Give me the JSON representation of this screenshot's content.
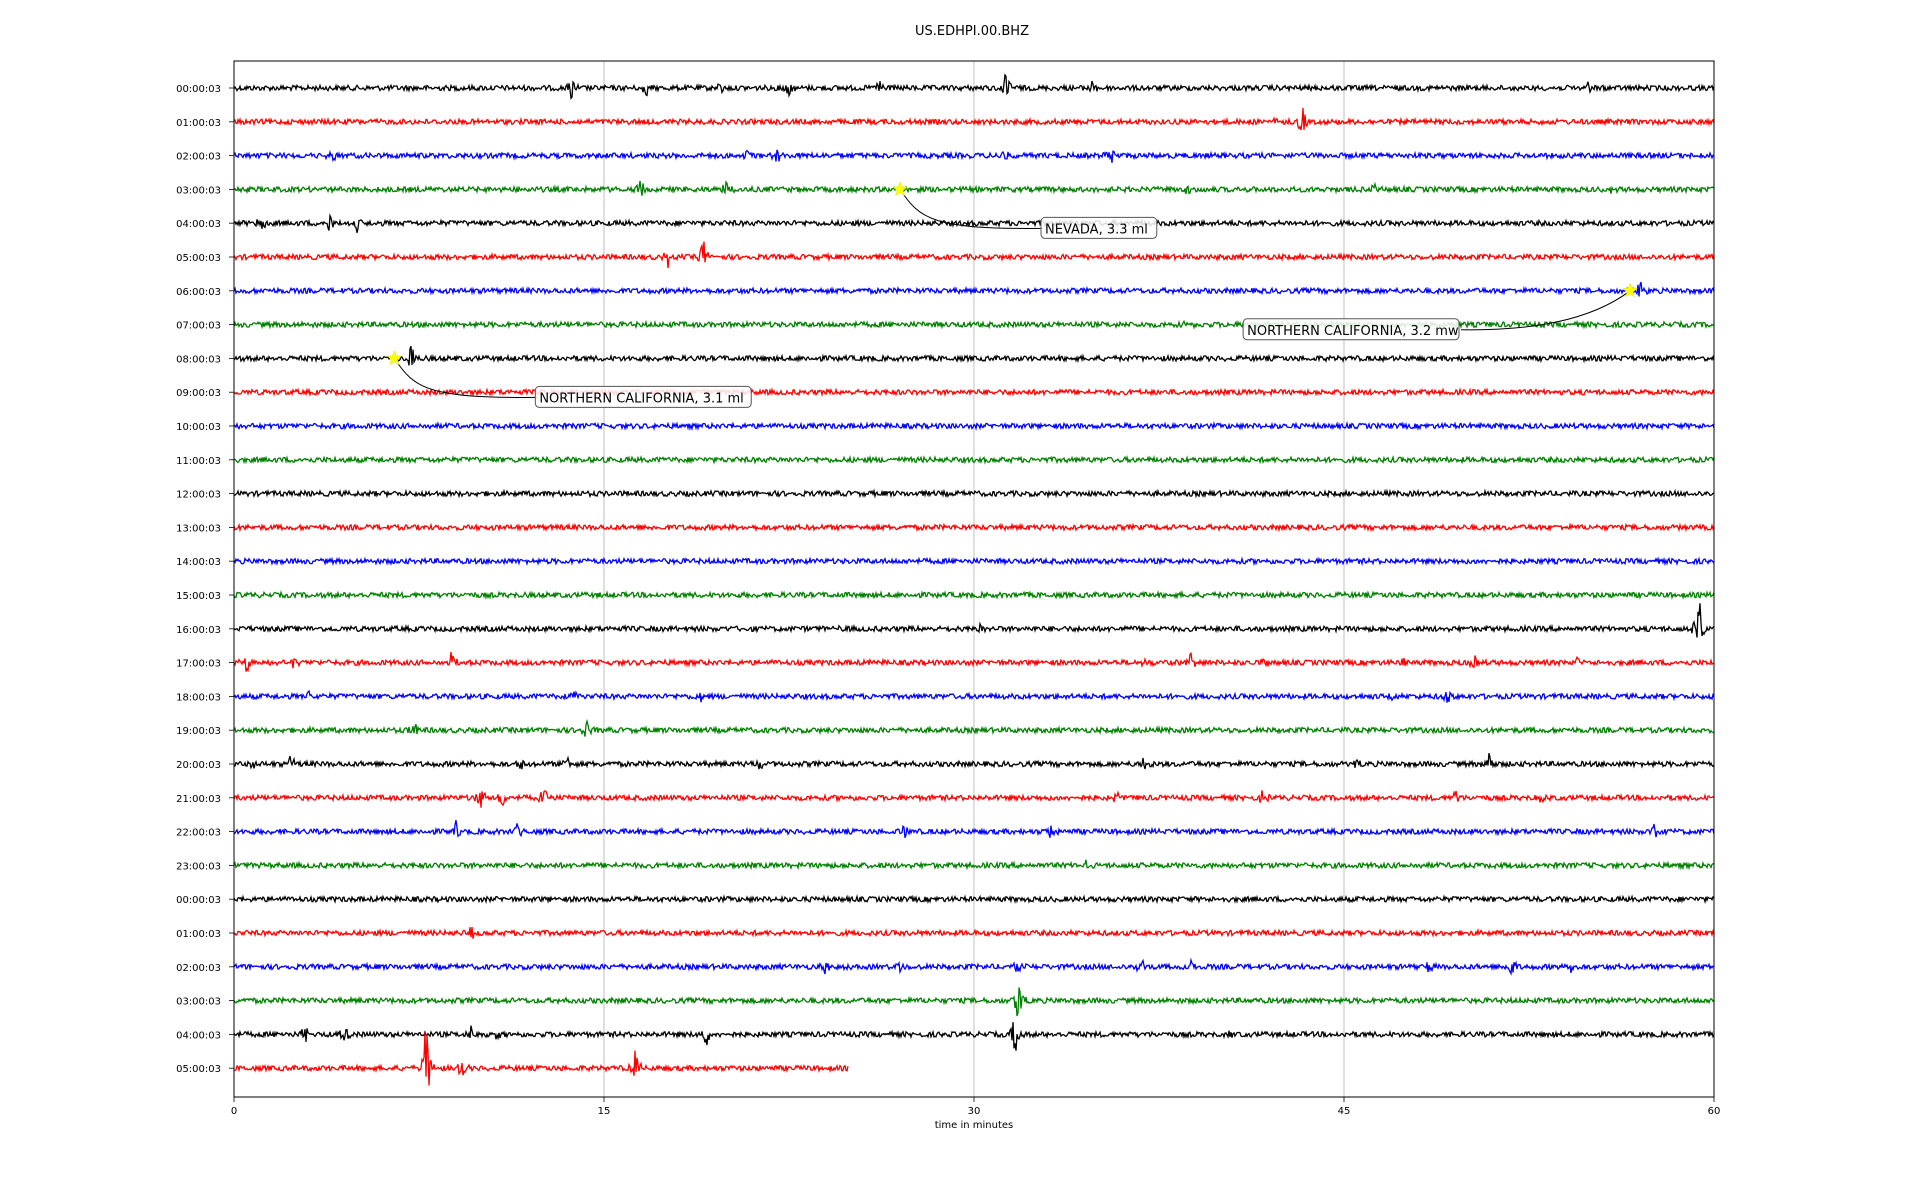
{
  "chart_data": {
    "type": "line",
    "title": "US.EDHPI.00.BHZ",
    "xlabel": "time in minutes",
    "xlim": [
      0,
      60
    ],
    "xticks": [
      0,
      15,
      30,
      45,
      60
    ],
    "grid": "vertical lines at 15, 30, 45",
    "trace_colors": [
      "#000000",
      "#ff0000",
      "#0000ff",
      "#008000"
    ],
    "rows": [
      {
        "label": "00:00:03",
        "color": "#000000",
        "events": [
          [
            13.7,
            14
          ],
          [
            16.7,
            8
          ],
          [
            19.7,
            9
          ],
          [
            22.5,
            10
          ],
          [
            26.2,
            12
          ],
          [
            31.3,
            18
          ],
          [
            34.8,
            10
          ],
          [
            52.1,
            7
          ],
          [
            54.9,
            8
          ]
        ]
      },
      {
        "label": "01:00:03",
        "color": "#ff0000",
        "events": [
          [
            42.3,
            8
          ],
          [
            43.3,
            18
          ]
        ]
      },
      {
        "label": "02:00:03",
        "color": "#0000ff",
        "events": [
          [
            4.0,
            9
          ],
          [
            20.8,
            8
          ],
          [
            22.0,
            9
          ],
          [
            31.2,
            7
          ],
          [
            35.5,
            14
          ]
        ]
      },
      {
        "label": "03:00:03",
        "color": "#008000",
        "events": [
          [
            16.5,
            11
          ],
          [
            20.0,
            14
          ],
          [
            38.6,
            7
          ],
          [
            46.2,
            7
          ],
          [
            55.8,
            7
          ]
        ]
      },
      {
        "label": "04:00:03",
        "color": "#000000",
        "events": [
          [
            1.1,
            12
          ],
          [
            3.9,
            11
          ],
          [
            5.0,
            10
          ]
        ]
      },
      {
        "label": "05:00:03",
        "color": "#ff0000",
        "events": [
          [
            17.6,
            9
          ],
          [
            19.0,
            25
          ]
        ]
      },
      {
        "label": "06:00:03",
        "color": "#0000ff",
        "events": [
          [
            57.0,
            12
          ]
        ]
      },
      {
        "label": "07:00:03",
        "color": "#008000",
        "events": [
          [
            38.7,
            5
          ]
        ]
      },
      {
        "label": "08:00:03",
        "color": "#000000",
        "events": [
          [
            7.2,
            20
          ]
        ]
      },
      {
        "label": "09:00:03",
        "color": "#ff0000",
        "events": []
      },
      {
        "label": "10:00:03",
        "color": "#0000ff",
        "events": []
      },
      {
        "label": "11:00:03",
        "color": "#008000",
        "events": []
      },
      {
        "label": "12:00:03",
        "color": "#000000",
        "events": []
      },
      {
        "label": "13:00:03",
        "color": "#ff0000",
        "events": []
      },
      {
        "label": "14:00:03",
        "color": "#0000ff",
        "events": []
      },
      {
        "label": "15:00:03",
        "color": "#008000",
        "events": []
      },
      {
        "label": "16:00:03",
        "color": "#000000",
        "events": [
          [
            24.5,
            5
          ],
          [
            30.2,
            6
          ],
          [
            59.4,
            38
          ]
        ]
      },
      {
        "label": "17:00:03",
        "color": "#ff0000",
        "events": [
          [
            0.5,
            12
          ],
          [
            2.4,
            10
          ],
          [
            8.8,
            11
          ],
          [
            37.0,
            8
          ],
          [
            38.8,
            9
          ],
          [
            41.8,
            9
          ],
          [
            47.5,
            8
          ],
          [
            50.3,
            10
          ],
          [
            54.5,
            7
          ]
        ]
      },
      {
        "label": "18:00:03",
        "color": "#0000ff",
        "events": [
          [
            3.1,
            9
          ],
          [
            13.8,
            6
          ],
          [
            18.9,
            6
          ],
          [
            46.8,
            7
          ],
          [
            49.2,
            9
          ]
        ]
      },
      {
        "label": "19:00:03",
        "color": "#008000",
        "events": [
          [
            7.3,
            10
          ],
          [
            14.3,
            12
          ]
        ]
      },
      {
        "label": "20:00:03",
        "color": "#000000",
        "events": [
          [
            0.7,
            7
          ],
          [
            2.3,
            12
          ],
          [
            11.6,
            8
          ],
          [
            13.5,
            10
          ],
          [
            21.3,
            8
          ],
          [
            36.9,
            9
          ],
          [
            45.5,
            6
          ],
          [
            50.9,
            16
          ]
        ]
      },
      {
        "label": "21:00:03",
        "color": "#ff0000",
        "events": [
          [
            10.0,
            14
          ],
          [
            10.9,
            16
          ],
          [
            12.6,
            15
          ],
          [
            35.8,
            8
          ],
          [
            41.7,
            8
          ],
          [
            49.5,
            10
          ],
          [
            53.0,
            8
          ]
        ]
      },
      {
        "label": "22:00:03",
        "color": "#0000ff",
        "events": [
          [
            9.0,
            9
          ],
          [
            11.5,
            8
          ],
          [
            27.2,
            11
          ],
          [
            33.1,
            8
          ],
          [
            57.6,
            9
          ]
        ]
      },
      {
        "label": "23:00:03",
        "color": "#008000",
        "events": [
          [
            34.5,
            6
          ]
        ]
      },
      {
        "label": "00:00:03",
        "color": "#000000",
        "events": []
      },
      {
        "label": "01:00:03",
        "color": "#ff0000",
        "events": [
          [
            9.6,
            9
          ]
        ]
      },
      {
        "label": "02:00:03",
        "color": "#0000ff",
        "events": [
          [
            24.0,
            10
          ],
          [
            25.0,
            9
          ],
          [
            27.0,
            11
          ],
          [
            31.8,
            8
          ],
          [
            36.8,
            12
          ],
          [
            38.8,
            10
          ],
          [
            48.5,
            9
          ],
          [
            51.8,
            12
          ],
          [
            54.2,
            10
          ]
        ]
      },
      {
        "label": "03:00:03",
        "color": "#008000",
        "events": [
          [
            31.8,
            32
          ]
        ]
      },
      {
        "label": "04:00:03",
        "color": "#000000",
        "events": [
          [
            2.9,
            14
          ],
          [
            4.5,
            12
          ],
          [
            9.6,
            8
          ],
          [
            10.6,
            7
          ],
          [
            19.1,
            18
          ],
          [
            31.7,
            34
          ],
          [
            40.4,
            7
          ]
        ]
      },
      {
        "label": "05:00:03",
        "color": "#ff0000",
        "end": 24.9,
        "events": [
          [
            7.8,
            58
          ],
          [
            9.2,
            18
          ],
          [
            16.3,
            30
          ]
        ]
      }
    ],
    "annotations": [
      {
        "text": "NEVADA, 3.3 ml",
        "row": 3,
        "x": 27.0
      },
      {
        "text": "NORTHERN CALIFORNIA, 3.2 mw",
        "row": 6,
        "x": 56.6
      },
      {
        "text": "NORTHERN CALIFORNIA, 3.1 ml",
        "row": 8,
        "x": 6.5
      }
    ]
  }
}
